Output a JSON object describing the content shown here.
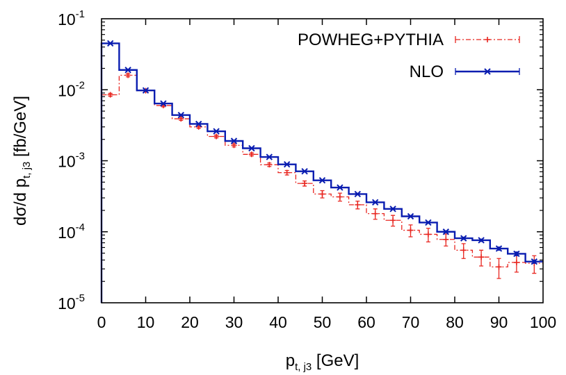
{
  "chart_data": {
    "type": "line",
    "plot_style": "step histogram with error bars",
    "xlabel": {
      "base": "p",
      "sub": "t, j3",
      "unit": " [GeV]"
    },
    "ylabel": {
      "base": "dσ/d p",
      "sub": "t, j3",
      "unit": " [fb/GeV]"
    },
    "xlim": [
      0,
      100
    ],
    "ylim": [
      1e-05,
      0.1
    ],
    "yscale": "log",
    "grid": false,
    "legend_position": "top-right",
    "x_ticks": [
      {
        "v": 0,
        "label": "0"
      },
      {
        "v": 10,
        "label": "10"
      },
      {
        "v": 20,
        "label": "20"
      },
      {
        "v": 30,
        "label": "30"
      },
      {
        "v": 40,
        "label": "40"
      },
      {
        "v": 50,
        "label": "50"
      },
      {
        "v": 60,
        "label": "60"
      },
      {
        "v": 70,
        "label": "70"
      },
      {
        "v": 80,
        "label": "80"
      },
      {
        "v": 90,
        "label": "90"
      },
      {
        "v": 100,
        "label": "100"
      }
    ],
    "y_ticks": [
      {
        "v": 1e-05,
        "base": "10",
        "exp": "-5"
      },
      {
        "v": 0.0001,
        "base": "10",
        "exp": "-4"
      },
      {
        "v": 0.001,
        "base": "10",
        "exp": "-3"
      },
      {
        "v": 0.01,
        "base": "10",
        "exp": "-2"
      },
      {
        "v": 0.1,
        "base": "10",
        "exp": "-1"
      }
    ],
    "bin_edges": [
      0,
      4,
      8,
      12,
      16,
      20,
      24,
      28,
      32,
      36,
      40,
      44,
      48,
      52,
      56,
      60,
      64,
      68,
      72,
      76,
      80,
      84,
      88,
      92,
      96,
      100
    ],
    "series": [
      {
        "name": "POWHEG+PYTHIA",
        "color": "#e8251f",
        "line_style": "dash-dot",
        "marker": "plus",
        "values": [
          0.0085,
          0.016,
          0.0097,
          0.006,
          0.0039,
          0.003,
          0.0022,
          0.00165,
          0.00123,
          0.00088,
          0.00068,
          0.00048,
          0.00034,
          0.00031,
          0.00024,
          0.00018,
          0.000145,
          0.000105,
          9.2e-05,
          7.8e-05,
          5.5e-05,
          4.4e-05,
          3.2e-05,
          3.7e-05,
          3.6e-05
        ],
        "errors": [
          0.0004,
          0.0008,
          0.0004,
          0.00025,
          0.0002,
          0.00013,
          0.0001,
          8e-05,
          6e-05,
          5e-05,
          5e-05,
          4e-05,
          4e-05,
          4e-05,
          3e-05,
          3e-05,
          2.5e-05,
          2e-05,
          2e-05,
          1.5e-05,
          1.3e-05,
          1.1e-05,
          1e-05,
          1e-05,
          1e-05
        ]
      },
      {
        "name": "NLO",
        "color": "#0a1db0",
        "line_style": "solid",
        "marker": "cross",
        "values": [
          0.045,
          0.019,
          0.0098,
          0.0064,
          0.0044,
          0.0033,
          0.0026,
          0.0019,
          0.0015,
          0.00113,
          0.00089,
          0.00071,
          0.00053,
          0.00042,
          0.00034,
          0.00026,
          0.00021,
          0.000165,
          0.000135,
          0.0001,
          8.1e-05,
          7.6e-05,
          5.8e-05,
          4.9e-05,
          3.8e-05
        ],
        "errors": [
          0.001,
          0.0004,
          0.0002,
          0.00012,
          8e-05,
          6e-05,
          5e-05,
          4e-05,
          3e-05,
          2e-05,
          1.8e-05,
          1.4e-05,
          1e-05,
          9e-06,
          8e-06,
          6e-06,
          5e-06,
          4e-06,
          4e-06,
          3e-06,
          3e-06,
          3e-06,
          3e-06,
          3e-06,
          2e-06
        ]
      }
    ]
  }
}
